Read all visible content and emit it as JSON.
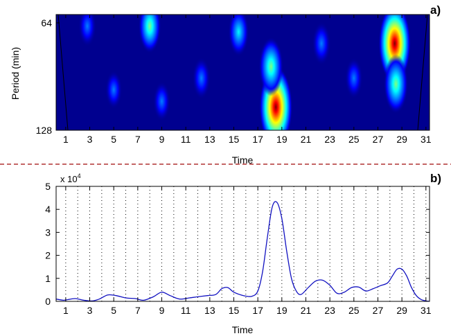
{
  "separator_color": "#b03030",
  "chart_data": [
    {
      "type": "heatmap",
      "panel_label": "a)",
      "xlabel": "Time",
      "ylabel": "Period  (min)",
      "x_ticks": [
        1,
        3,
        5,
        7,
        9,
        11,
        13,
        15,
        17,
        19,
        21,
        23,
        25,
        27,
        29,
        31
      ],
      "xlim": [
        0.2,
        31.3
      ],
      "y_ticks": [
        64,
        128
      ],
      "y_direction": "64 top, 128 bottom",
      "colormap": "jet",
      "colorscale": [
        "#00008f",
        "#0000ff",
        "#0080ff",
        "#00ffff",
        "#80ff80",
        "#ffff00",
        "#ff8000",
        "#ff0000",
        "#800000"
      ],
      "hotspots": [
        {
          "time": 18.5,
          "period_level": 0.8,
          "intensity": 1.0
        },
        {
          "time": 18.1,
          "period_level": 0.45,
          "intensity": 0.55
        },
        {
          "time": 28.4,
          "period_level": 0.25,
          "intensity": 0.95
        },
        {
          "time": 28.5,
          "period_level": 0.6,
          "intensity": 0.55
        },
        {
          "time": 8.0,
          "period_level": 0.1,
          "intensity": 0.45
        },
        {
          "time": 15.4,
          "period_level": 0.15,
          "intensity": 0.35
        },
        {
          "time": 22.3,
          "period_level": 0.25,
          "intensity": 0.25
        },
        {
          "time": 2.8,
          "period_level": 0.1,
          "intensity": 0.2
        },
        {
          "time": 12.3,
          "period_level": 0.55,
          "intensity": 0.22
        },
        {
          "time": 25.0,
          "period_level": 0.55,
          "intensity": 0.2
        },
        {
          "time": 9.0,
          "period_level": 0.75,
          "intensity": 0.18
        },
        {
          "time": 5.0,
          "period_level": 0.65,
          "intensity": 0.15
        }
      ]
    },
    {
      "type": "line",
      "panel_label": "b)",
      "xlabel": "Time",
      "ylabel": "",
      "exponent_label": "x 10",
      "exponent_power": "4",
      "x_ticks": [
        1,
        3,
        5,
        7,
        9,
        11,
        13,
        15,
        17,
        19,
        21,
        23,
        25,
        27,
        29,
        31
      ],
      "xlim": [
        0.2,
        31.3
      ],
      "y_ticks": [
        0,
        1,
        2,
        3,
        4,
        5
      ],
      "ylim": [
        0,
        5
      ],
      "vertical_dotted_grid": true,
      "line_color": "#1010c0",
      "series": [
        {
          "x": [
            0.2,
            0.8,
            1.2,
            1.8,
            2.5,
            3.2,
            3.8,
            4.5,
            5.2,
            6.0,
            6.8,
            7.5,
            8.3,
            9.0,
            9.7,
            10.5,
            11.3,
            12.0,
            12.8,
            13.5,
            14.0,
            14.5,
            15.0,
            15.8,
            16.5,
            17.0,
            17.4,
            17.8,
            18.2,
            18.6,
            19.0,
            19.4,
            19.8,
            20.2,
            20.6,
            21.2,
            21.8,
            22.4,
            23.0,
            23.6,
            24.2,
            24.8,
            25.4,
            26.0,
            26.6,
            27.2,
            27.8,
            28.2,
            28.6,
            29.0,
            29.4,
            29.8,
            30.2,
            30.6,
            31.0,
            31.3
          ],
          "y": [
            0.1,
            0.05,
            0.08,
            0.12,
            0.05,
            0.02,
            0.1,
            0.28,
            0.25,
            0.15,
            0.12,
            0.05,
            0.2,
            0.4,
            0.25,
            0.1,
            0.15,
            0.2,
            0.25,
            0.3,
            0.55,
            0.6,
            0.4,
            0.25,
            0.22,
            0.45,
            1.3,
            2.8,
            4.1,
            4.3,
            3.6,
            2.2,
            1.0,
            0.45,
            0.3,
            0.6,
            0.88,
            0.92,
            0.7,
            0.35,
            0.4,
            0.6,
            0.62,
            0.45,
            0.55,
            0.68,
            0.8,
            1.1,
            1.4,
            1.4,
            1.1,
            0.6,
            0.25,
            0.08,
            0.02,
            0.0
          ]
        }
      ]
    }
  ]
}
